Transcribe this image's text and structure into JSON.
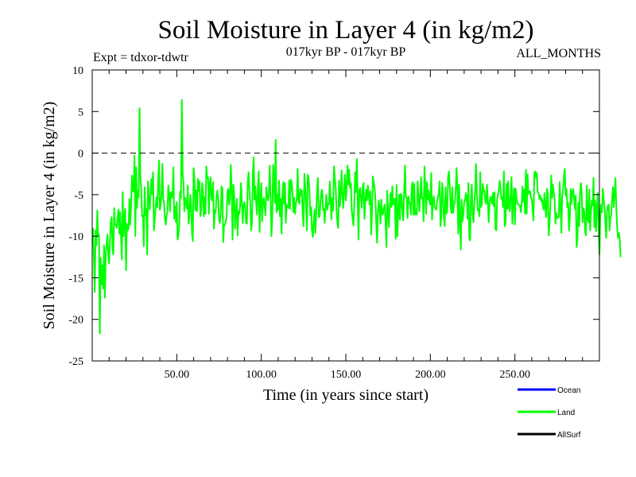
{
  "chart_data": {
    "type": "line",
    "title": "Soil Moisture in Layer 4 (in kg/m2)",
    "subtitle": "017kyr BP - 017kyr BP",
    "expt_label": "Expt = tdxor-tdwtr",
    "months_label": "ALL_MONTHS",
    "xlabel": "Time (in years since start)",
    "ylabel": "Soil Moisture in Layer 4 (in kg/m2)",
    "xlim": [
      0,
      300
    ],
    "ylim": [
      -25,
      10
    ],
    "x_ticks": [
      50,
      100,
      150,
      200,
      250
    ],
    "x_tick_labels": [
      "50.00",
      "100.00",
      "150.00",
      "200.00",
      "250.00"
    ],
    "y_ticks": [
      10,
      5,
      0,
      -5,
      -10,
      -15,
      -20,
      -25
    ],
    "y_tick_labels": [
      "10",
      "5",
      "0",
      "-5",
      "-10",
      "-15",
      "-20",
      "-25"
    ],
    "reference_line": {
      "y": 0,
      "style": "dashed"
    },
    "legend": [
      {
        "name": "Ocean",
        "color": "#0000ff"
      },
      {
        "name": "Land",
        "color": "#00ff00"
      },
      {
        "name": "AllSurf",
        "color": "#000000"
      }
    ],
    "series": [
      {
        "name": "Land",
        "color": "#00ff00",
        "x_start": 0.5,
        "x_step": 0.5,
        "values": [
          -9.0,
          -12.7,
          -16.7,
          -9.3,
          -11.1,
          -6.9,
          -9.9,
          -9.8,
          -21.7,
          -12.6,
          -15.8,
          -13.5,
          -16.3,
          -11.1,
          -17.4,
          -12.1,
          -11.0,
          -9.8,
          -12.3,
          -13.3,
          -10.5,
          -8.2,
          -7.7,
          -11.6,
          -12.2,
          -6.6,
          -8.6,
          -8.6,
          -9.0,
          -7.8,
          -6.8,
          -9.7,
          -7.1,
          -10.0,
          -12.8,
          -4.7,
          -10.0,
          -8.1,
          -6.7,
          -14.1,
          -8.5,
          -9.3,
          -9.0,
          -5.5,
          -8.6,
          -6.3,
          -2.7,
          -4.6,
          -4.6,
          -0.3,
          -10.0,
          -1.7,
          -6.6,
          -4.6,
          -5.3,
          5.4,
          -3.1,
          -4.2,
          -7.6,
          -7.5,
          -11.2,
          -4.1,
          -7.5,
          -6.7,
          -12.2,
          -3.4,
          -5.4,
          -6.8,
          -5.0,
          -3.1,
          -4.9,
          -2.3,
          -9.3,
          -8.0,
          -6.5,
          -5.3,
          -6.5,
          -3.4,
          -0.9,
          -6.8,
          -6.2,
          -5.0,
          -1.3,
          -5.5,
          -6.0,
          -7.9,
          -8.6,
          -7.5,
          -7.0,
          -3.9,
          -4.9,
          -7.0,
          -4.7,
          -5.4,
          -5.0,
          -1.7,
          -7.9,
          -6.4,
          -8.3,
          -5.9,
          -10.4,
          -9.9,
          -8.6,
          -4.6,
          -5.4,
          6.4,
          -2.5,
          -3.4,
          -7.0,
          -5.4,
          -5.9,
          -6.7,
          -3.9,
          -8.5,
          -7.6,
          -5.0,
          -6.2,
          -9.6,
          -10.6,
          -1.8,
          -3.2,
          -6.9,
          -4.5,
          -7.0,
          -3.1,
          -4.5,
          -3.4,
          -7.6,
          -6.7,
          -3.6,
          -4.6,
          -7.6,
          -5.3,
          -7.3,
          -1.6,
          -3.0,
          -2.9,
          -7.3,
          -3.8,
          -2.9,
          -5.4,
          -5.7,
          -3.5,
          -9.1,
          -6.9,
          -7.2,
          -5.2,
          -4.5,
          -5.5,
          -8.0,
          -8.4,
          -7.4,
          -4.0,
          -4.3,
          -10.7,
          -8.6,
          -8.6,
          -8.2,
          -7.6,
          -4.6,
          -4.3,
          -6.2,
          -5.1,
          -1.4,
          -4.5,
          -10.4,
          -3.8,
          -5.2,
          -9.1,
          -7.2,
          -5.5,
          -9.9,
          -7.0,
          -7.3,
          -6.3,
          -3.6,
          -5.7,
          -8.4,
          -6.4,
          -5.9,
          -6.6,
          -8.4,
          -8.5,
          -3.5,
          -2.3,
          -4.5,
          -6.0,
          -9.3,
          -8.4,
          -2.4,
          -0.5,
          -5.6,
          -4.0,
          -6.1,
          -7.4,
          -4.0,
          -2.2,
          -9.5,
          -5.5,
          -3.6,
          -8.2,
          -5.7,
          -5.4,
          -6.6,
          -7.5,
          -4.1,
          -5.2,
          -5.7,
          -5.0,
          -1.5,
          -5.3,
          -10.0,
          -7.7,
          -1.4,
          -3.2,
          -6.0,
          1.6,
          -7.1,
          -5.0,
          -6.8,
          -3.3,
          -7.6,
          -5.5,
          -9.7,
          -5.0,
          -3.5,
          -6.1,
          -3.6,
          -8.4,
          -6.2,
          -6.4,
          -6.6,
          -3.3,
          -6.7,
          -3.2,
          -3.6,
          -4.8,
          -7.1,
          -5.4,
          -7.3,
          -6.0,
          -5.7,
          -1.9,
          -5.6,
          -6.1,
          -4.3,
          -5.1,
          -4.5,
          -7.4,
          -8.8,
          -2.5,
          -3.9,
          -6.3,
          -9.3,
          -2.6,
          -3.0,
          -4.4,
          -7.5,
          -6.5,
          -9.4,
          -10.1,
          -8.4,
          -6.8,
          -9.6,
          -7.3,
          -4.5,
          -3.0,
          -7.7,
          -7.6,
          -6.1,
          -4.7,
          -4.4,
          -6.8,
          -6.7,
          -8.4,
          -6.6,
          -5.0,
          -6.8,
          -6.1,
          -6.2,
          -3.4,
          -5.5,
          -8.0,
          -5.4,
          -6.9,
          -1.6,
          -3.0,
          -4.1,
          -6.9,
          -8.4,
          -9.0,
          -3.3,
          -6.4,
          -4.7,
          -2.1,
          -5.3,
          -6.6,
          -4.2,
          -2.6,
          -5.7,
          -4.3,
          -1.5,
          -3.8,
          -2.0,
          -4.2,
          -3.6,
          -6.8,
          -7.9,
          -8.7,
          -6.2,
          -2.3,
          -4.7,
          -0.7,
          -5.5,
          -10.4,
          -4.5,
          -4.2,
          -5.5,
          -6.6,
          -4.0,
          -3.6,
          -7.9,
          -5.9,
          -4.4,
          -5.7,
          -3.9,
          -4.8,
          -6.2,
          -4.6,
          -9.8,
          -7.1,
          -2.8,
          -3.5,
          -4.2,
          -5.5,
          -8.4,
          -10.8,
          -7.1,
          -5.7,
          -6.7,
          -8.5,
          -5.6,
          -7.4,
          -7.3,
          -6.5,
          -6.2,
          -8.2,
          -11.3,
          -4.5,
          -6.8,
          -8.9,
          -6.4,
          -4.8,
          -6.5,
          -4.0,
          -6.2,
          -5.8,
          -5.5,
          -10.3,
          -3.8,
          -10.0,
          -6.9,
          -5.0,
          -8.0,
          -4.9,
          -5.2,
          -7.3,
          -8.1,
          -4.6,
          -1.5,
          -5.3,
          -5.4,
          -7.8,
          -5.2,
          -6.0,
          -6.1,
          -7.4,
          -4.0,
          -3.5,
          -7.4,
          -3.7,
          -7.4,
          -6.8,
          -7.4,
          -3.4,
          -5.1,
          -7.0,
          -5.2,
          -2.9,
          -5.4,
          -5.4,
          -8.2,
          -1.6,
          -3.9,
          -7.3,
          -3.5,
          -5.6,
          -4.5,
          -5.9,
          -6.2,
          -2.4,
          -8.0,
          -5.7,
          -5.2,
          -6.5,
          -6.7,
          -6.8,
          -5.8,
          -5.3,
          -4.7,
          -3.4,
          -8.8,
          -7.5,
          -3.6,
          -5.2,
          -7.6,
          -8.8,
          -4.1,
          -7.3,
          -6.9,
          -2.8,
          -2.2,
          -4.0,
          -6.4,
          -7.2,
          -4.1,
          -7.2,
          -6.2,
          -6.0,
          -4.4,
          -1.8,
          -4.3,
          -9.7,
          -3.8,
          -7.9,
          -11.6,
          -5.6,
          -8.2,
          -7.4,
          -5.9,
          -5.7,
          -4.8,
          -5.4,
          -7.9,
          -3.6,
          -10.2,
          -10.5,
          -5.3,
          -3.8,
          -7.3,
          -8.3,
          -6.2,
          -4.5,
          -1.3,
          -4.9,
          -6.9,
          -6.7,
          -7.6,
          -2.3,
          -6.5,
          -6.0,
          -3.7,
          -4.6,
          -4.5,
          -5.8,
          -6.1,
          -3.8,
          -5.7,
          -8.3,
          -6.2,
          -5.3,
          -5.3,
          -6.1,
          -4.8,
          -6.4,
          -4.7,
          -9.1,
          -9.3,
          -5.6,
          -5.0,
          -4.5,
          -3.3,
          -4.3,
          -5.5,
          -5.3,
          -6.5,
          -2.2,
          -8.8,
          -8.5,
          -3.7,
          -6.7,
          -3.4,
          -6.5,
          -7.0,
          -5.0,
          -2.9,
          -8.5,
          -5.8,
          -4.2,
          -8.6,
          -4.3,
          -5.3,
          -6.1,
          -6.1,
          -6.3,
          -6.3,
          -7.1,
          -6.3,
          -4.0,
          -5.8,
          -4.4,
          -7.3,
          -2.0,
          -7.3,
          -2.6,
          -4.9,
          -4.6,
          -4.6,
          -5.4,
          -5.5,
          -6.8,
          -8.1,
          -2.4,
          -2.2,
          -3.0,
          -2.4,
          -4.7,
          -4.8,
          -5.5,
          -5.1,
          -5.8,
          -5.5,
          -6.3,
          -6.8,
          -4.8,
          -6.7,
          -7.7,
          -4.3,
          -4.8,
          -9.9,
          -8.3,
          -6.3,
          -2.7,
          -5.4,
          -3.8,
          -4.8,
          -5.5,
          -8.5,
          -7.2,
          -7.8,
          -7.8,
          -7.6,
          -3.5,
          -6.5,
          -9.6,
          -5.1,
          -4.5,
          -2.7,
          -1.9,
          -5.1,
          -4.3,
          -6.5,
          -6.0,
          -9.3,
          -7.9,
          -4.3,
          -6.1,
          -4.7,
          -4.3,
          -5.5,
          -6.7,
          -5.1,
          -11.3,
          -10.1,
          -6.0,
          -8.8,
          -4.9,
          -3.6,
          -4.7,
          -8.3,
          -6.6,
          -7.0,
          -9.4,
          -9.9,
          -3.9,
          -7.9,
          -8.3,
          -4.4,
          -9.3,
          -7.1,
          -5.7,
          -6.3,
          -3.0,
          -8.9,
          -5.7,
          -9.4,
          -6.6,
          -4.8,
          -9.1,
          -12.2,
          -7.7,
          -6.2,
          -7.1,
          -4.3,
          -5.5,
          -6.6,
          -8.3,
          -10.2,
          -6.9,
          -6.3,
          -6.2,
          -9.3,
          -7.8,
          -7.5,
          -5.4,
          -4.1,
          -6.5,
          -4.6,
          -3.0,
          -6.7,
          -8.9,
          -10.2,
          -9.6,
          -10.3,
          -12.5
        ]
      }
    ]
  }
}
